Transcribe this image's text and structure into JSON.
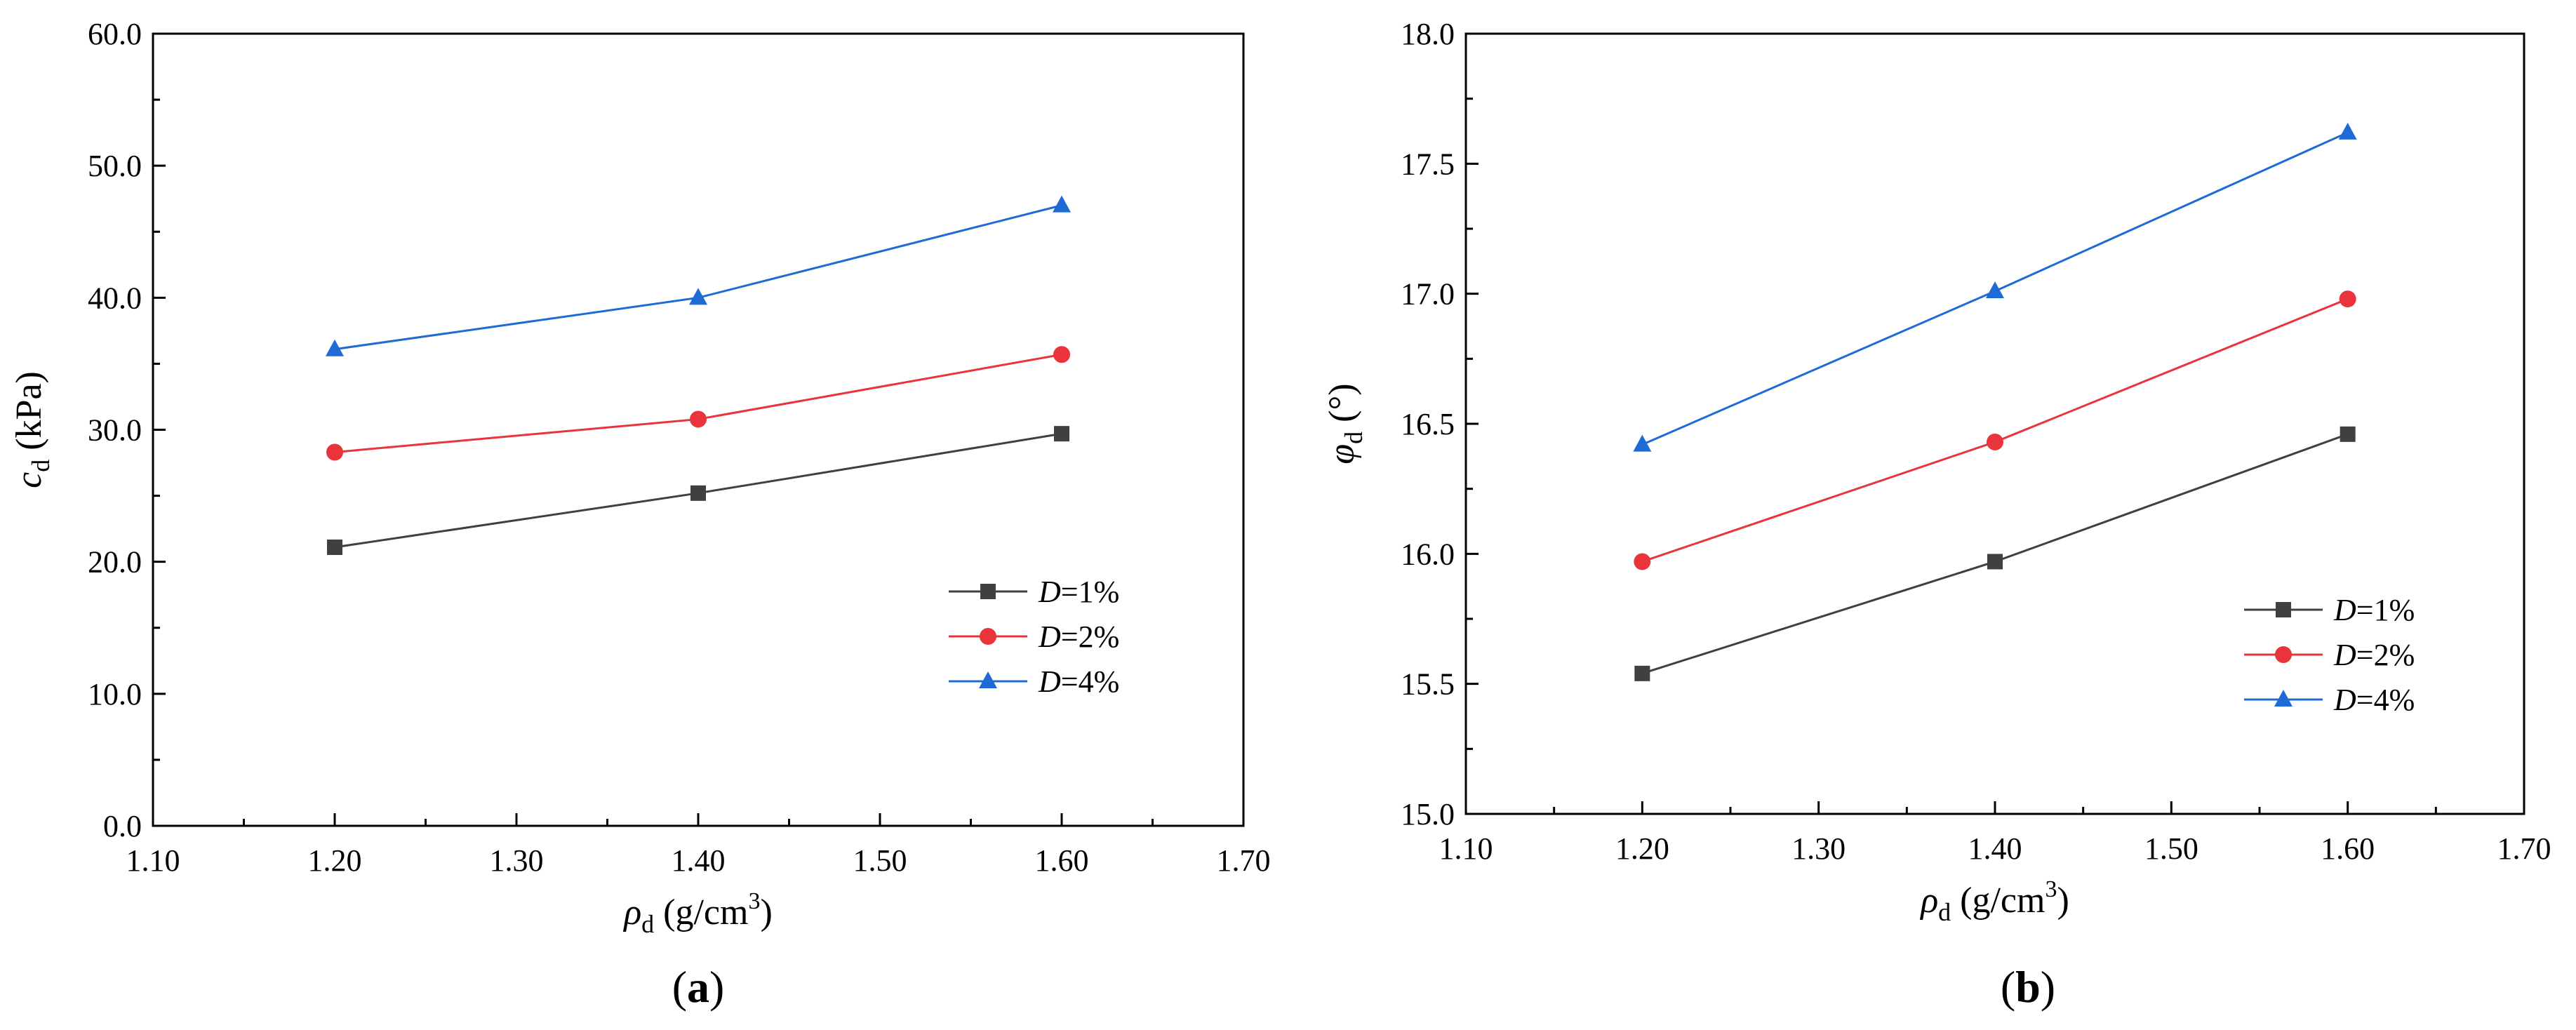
{
  "chart_data": [
    {
      "type": "line",
      "panel_label": "(a)",
      "panel_label_parts": [
        "(",
        "a",
        ")"
      ],
      "x": [
        1.2,
        1.4,
        1.6
      ],
      "xlim": [
        1.1,
        1.7
      ],
      "ylim": [
        0,
        60
      ],
      "x_ticks": [
        "1.10",
        "1.20",
        "1.30",
        "1.40",
        "1.50",
        "1.60",
        "1.70"
      ],
      "y_ticks": [
        "0.0",
        "10.0",
        "20.0",
        "30.0",
        "40.0",
        "50.0",
        "60.0"
      ],
      "xlabel": {
        "symbol": "ρ",
        "sub": "d",
        "unit_pre": " (g/cm",
        "sup": "3",
        "unit_post": ")"
      },
      "ylabel": {
        "symbol": "c",
        "sub": "d",
        "unit": " (kPa)"
      },
      "legend_position": "lower-right",
      "series": [
        {
          "name": "D=1%",
          "var": "D",
          "suffix": "=1%",
          "marker": "square",
          "color": "#404040",
          "values": [
            21.1,
            25.2,
            29.7
          ]
        },
        {
          "name": "D=2%",
          "var": "D",
          "suffix": "=2%",
          "marker": "circle",
          "color": "#e8343a",
          "values": [
            28.3,
            30.8,
            35.7
          ]
        },
        {
          "name": "D=4%",
          "var": "D",
          "suffix": "=4%",
          "marker": "triangle",
          "color": "#1f6bd6",
          "values": [
            36.1,
            40.0,
            47.0
          ]
        }
      ]
    },
    {
      "type": "line",
      "panel_label": "(b)",
      "panel_label_parts": [
        "(",
        "b",
        ")"
      ],
      "x": [
        1.2,
        1.4,
        1.6
      ],
      "xlim": [
        1.1,
        1.7
      ],
      "ylim": [
        15.0,
        18.0
      ],
      "x_ticks": [
        "1.10",
        "1.20",
        "1.30",
        "1.40",
        "1.50",
        "1.60",
        "1.70"
      ],
      "y_ticks": [
        "15.0",
        "15.5",
        "16.0",
        "16.5",
        "17.0",
        "17.5",
        "18.0"
      ],
      "xlabel": {
        "symbol": "ρ",
        "sub": "d",
        "unit_pre": " (g/cm",
        "sup": "3",
        "unit_post": ")"
      },
      "ylabel": {
        "symbol": "φ",
        "sub": "d",
        "unit": " (°)"
      },
      "legend_position": "lower-right",
      "series": [
        {
          "name": "D=1%",
          "var": "D",
          "suffix": "=1%",
          "marker": "square",
          "color": "#404040",
          "values": [
            15.54,
            15.97,
            16.46
          ]
        },
        {
          "name": "D=2%",
          "var": "D",
          "suffix": "=2%",
          "marker": "circle",
          "color": "#e8343a",
          "values": [
            15.97,
            16.43,
            16.98
          ]
        },
        {
          "name": "D=4%",
          "var": "D",
          "suffix": "=4%",
          "marker": "triangle",
          "color": "#1f6bd6",
          "values": [
            16.42,
            17.01,
            17.62
          ]
        }
      ]
    }
  ]
}
